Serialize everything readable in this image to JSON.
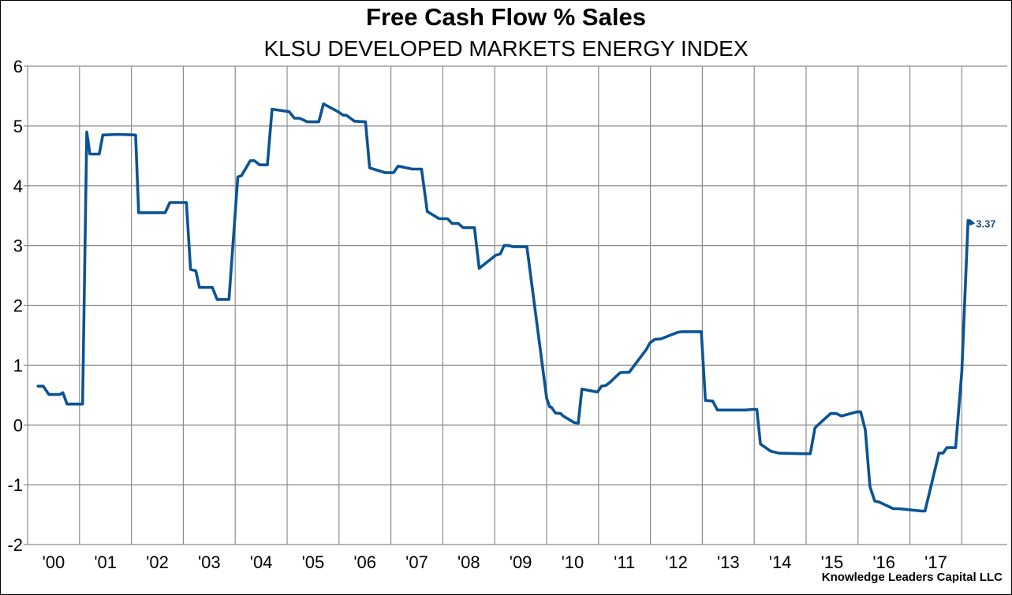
{
  "chart_data": {
    "type": "line",
    "title": "Free Cash Flow % Sales",
    "subtitle": "KLSU DEVELOPED MARKETS ENERGY INDEX",
    "xlabel": "",
    "ylabel": "",
    "ylim": [
      -2,
      6
    ],
    "xlim": [
      2000,
      2018.8
    ],
    "yticks": [
      6,
      5,
      4,
      3,
      2,
      1,
      0,
      -1,
      -2
    ],
    "ytick_labels": [
      "6",
      "5",
      "4",
      "3",
      "2",
      "1",
      "0",
      "-1",
      "-2"
    ],
    "xtick_labels": [
      "'00",
      "'01",
      "'02",
      "'03",
      "'04",
      "'05",
      "'06",
      "'07",
      "'08",
      "'09",
      "'10",
      "'11",
      "'12",
      "'13",
      "'14",
      "'15",
      "'16",
      "'17"
    ],
    "grid": true,
    "line_color": "#0b5394",
    "end_label": "3.37",
    "credit": "Knowledge Leaders Capital LLC",
    "series": [
      {
        "name": "Free Cash Flow % Sales",
        "x": [
          2000.2,
          2000.3,
          2000.41,
          2000.62,
          2000.68,
          2000.76,
          2001.06,
          2001.14,
          2001.2,
          2001.38,
          2001.45,
          2001.74,
          2002.08,
          2002.14,
          2002.17,
          2002.65,
          2002.74,
          2003.06,
          2003.14,
          2003.24,
          2003.31,
          2003.56,
          2003.65,
          2003.88,
          2004.05,
          2004.12,
          2004.29,
          2004.37,
          2004.47,
          2004.62,
          2004.71,
          2005.04,
          2005.14,
          2005.24,
          2005.39,
          2005.61,
          2005.7,
          2005.98,
          2006.08,
          2006.14,
          2006.3,
          2006.51,
          2006.59,
          2006.89,
          2007.05,
          2007.14,
          2007.3,
          2007.41,
          2007.59,
          2007.7,
          2007.93,
          2008.09,
          2008.18,
          2008.3,
          2008.39,
          2008.61,
          2008.7,
          2009.02,
          2009.11,
          2009.18,
          2009.27,
          2009.36,
          2009.55,
          2009.62,
          2010.0,
          2010.06,
          2010.09,
          2010.17,
          2010.27,
          2010.32,
          2010.53,
          2010.61,
          2010.68,
          2010.98,
          2011.06,
          2011.14,
          2011.23,
          2011.41,
          2011.48,
          2011.59,
          2011.92,
          2011.99,
          2012.08,
          2012.2,
          2012.53,
          2012.61,
          2012.98,
          2013.06,
          2013.2,
          2013.29,
          2013.83,
          2013.97,
          2014.05,
          2014.12,
          2014.32,
          2014.47,
          2014.89,
          2015.08,
          2015.17,
          2015.29,
          2015.47,
          2015.58,
          2015.68,
          2015.98,
          2016.05,
          2016.14,
          2016.23,
          2016.32,
          2016.41,
          2016.68,
          2016.79,
          2017.23,
          2017.29,
          2017.56,
          2017.64,
          2017.71,
          2017.88,
          2018.0,
          2018.12,
          2018.18
        ],
        "y": [
          0.65,
          0.65,
          0.51,
          0.51,
          0.54,
          0.35,
          0.35,
          4.9,
          4.53,
          4.53,
          4.85,
          4.86,
          4.85,
          3.55,
          3.55,
          3.55,
          3.72,
          3.72,
          2.6,
          2.58,
          2.3,
          2.3,
          2.1,
          2.1,
          4.15,
          4.17,
          4.42,
          4.42,
          4.35,
          4.35,
          5.28,
          5.24,
          5.13,
          5.13,
          5.07,
          5.07,
          5.37,
          5.24,
          5.18,
          5.18,
          5.08,
          5.07,
          4.3,
          4.22,
          4.22,
          4.33,
          4.3,
          4.28,
          4.28,
          3.57,
          3.45,
          3.45,
          3.37,
          3.37,
          3.3,
          3.3,
          2.62,
          2.84,
          2.86,
          3.0,
          3.0,
          2.98,
          2.98,
          2.98,
          0.45,
          0.3,
          0.3,
          0.2,
          0.19,
          0.15,
          0.04,
          0.03,
          0.6,
          0.55,
          0.65,
          0.66,
          0.72,
          0.87,
          0.88,
          0.88,
          1.26,
          1.37,
          1.43,
          1.44,
          1.55,
          1.56,
          1.56,
          0.41,
          0.4,
          0.25,
          0.25,
          0.26,
          0.26,
          -0.32,
          -0.44,
          -0.47,
          -0.48,
          -0.48,
          -0.05,
          0.05,
          0.19,
          0.19,
          0.15,
          0.22,
          0.22,
          -0.08,
          -1.03,
          -1.27,
          -1.29,
          -1.4,
          -1.4,
          -1.44,
          -1.44,
          -0.47,
          -0.47,
          -0.38,
          -0.38,
          0.9,
          3.42,
          3.37
        ]
      }
    ]
  }
}
